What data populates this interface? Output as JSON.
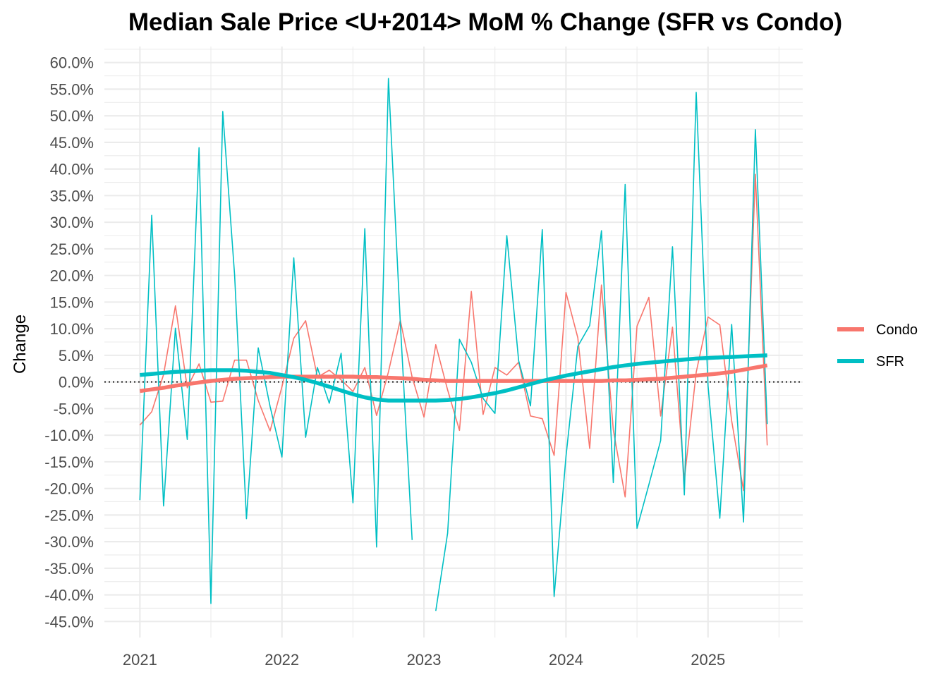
{
  "chart_data": {
    "type": "line",
    "title": "Median Sale Price <U+2014> MoM % Change (SFR vs Condo)",
    "xlabel": "",
    "ylabel": "Change",
    "x_ticks": [
      "2021",
      "2022",
      "2023",
      "2024",
      "2025"
    ],
    "y_ticks": [
      "60.0%",
      "55.0%",
      "50.0%",
      "45.0%",
      "40.0%",
      "35.0%",
      "30.0%",
      "25.0%",
      "20.0%",
      "15.0%",
      "10.0%",
      "5.0%",
      "0.0%",
      "-5.0%",
      "-10.0%",
      "-15.0%",
      "-20.0%",
      "-25.0%",
      "-30.0%",
      "-35.0%",
      "-40.0%",
      "-45.0%"
    ],
    "ylim": [
      -0.48,
      0.63
    ],
    "xlim": [
      "2020-10",
      "2025-09"
    ],
    "grid": true,
    "legend_position": "right",
    "reference_line": {
      "y": 0,
      "style": "dotted"
    },
    "x": [
      "2021-01",
      "2021-02",
      "2021-03",
      "2021-04",
      "2021-05",
      "2021-06",
      "2021-07",
      "2021-08",
      "2021-09",
      "2021-10",
      "2021-11",
      "2021-12",
      "2022-01",
      "2022-02",
      "2022-03",
      "2022-04",
      "2022-05",
      "2022-06",
      "2022-07",
      "2022-08",
      "2022-09",
      "2022-10",
      "2022-11",
      "2022-12",
      "2023-01",
      "2023-02",
      "2023-03",
      "2023-04",
      "2023-05",
      "2023-06",
      "2023-07",
      "2023-08",
      "2023-09",
      "2023-10",
      "2023-11",
      "2023-12",
      "2024-01",
      "2024-02",
      "2024-03",
      "2024-04",
      "2024-05",
      "2024-06",
      "2024-07",
      "2024-08",
      "2024-09",
      "2024-10",
      "2024-11",
      "2024-12",
      "2025-01",
      "2025-02",
      "2025-03",
      "2025-04",
      "2025-05",
      "2025-06"
    ],
    "series": [
      {
        "name": "Condo",
        "color": "#f8766d",
        "values": [
          -0.081,
          -0.056,
          0.014,
          0.143,
          -0.011,
          0.034,
          -0.038,
          -0.036,
          0.041,
          0.041,
          -0.035,
          -0.092,
          -0.009,
          0.082,
          0.115,
          0.009,
          0.022,
          0.004,
          -0.018,
          0.027,
          -0.063,
          0.019,
          0.116,
          0.009,
          -0.066,
          0.07,
          -0.015,
          -0.091,
          0.17,
          -0.061,
          0.027,
          0.013,
          0.037,
          -0.064,
          -0.069,
          -0.138,
          0.168,
          0.083,
          -0.125,
          0.182,
          -0.09,
          -0.216,
          0.105,
          0.159,
          -0.064,
          0.103,
          -0.184,
          0.018,
          0.122,
          0.107,
          -0.073,
          -0.204,
          0.39,
          -0.119
        ],
        "trend": [
          -0.017,
          -0.014,
          -0.011,
          -0.007,
          -0.004,
          -0.001,
          0.002,
          0.004,
          0.006,
          0.007,
          0.008,
          0.009,
          0.01,
          0.01,
          0.01,
          0.01,
          0.01,
          0.01,
          0.01,
          0.009,
          0.009,
          0.008,
          0.007,
          0.006,
          0.004,
          0.003,
          0.002,
          0.002,
          0.002,
          0.002,
          0.002,
          0.002,
          0.002,
          0.002,
          0.002,
          0.002,
          0.002,
          0.002,
          0.002,
          0.002,
          0.003,
          0.003,
          0.004,
          0.005,
          0.006,
          0.008,
          0.01,
          0.012,
          0.014,
          0.016,
          0.019,
          0.023,
          0.027,
          0.031
        ]
      },
      {
        "name": "SFR",
        "color": "#00bfc4",
        "values": [
          -0.222,
          0.313,
          -0.233,
          0.101,
          -0.108,
          0.44,
          -0.416,
          0.508,
          0.201,
          -0.257,
          0.064,
          -0.046,
          -0.141,
          0.233,
          -0.104,
          0.027,
          -0.04,
          0.054,
          -0.227,
          0.288,
          -0.31,
          0.57,
          0.112,
          -0.297,
          null,
          -0.43,
          -0.284,
          0.08,
          0.037,
          -0.031,
          -0.059,
          0.275,
          0.04,
          -0.045,
          0.286,
          -0.403,
          -0.14,
          0.067,
          0.106,
          0.284,
          -0.189,
          0.371,
          -0.275,
          -0.193,
          -0.11,
          0.254,
          -0.212,
          0.544,
          -0.007,
          -0.256,
          0.108,
          -0.263,
          0.474,
          -0.079
        ],
        "trend": [
          0.013,
          0.015,
          0.017,
          0.019,
          0.02,
          0.021,
          0.022,
          0.022,
          0.022,
          0.021,
          0.019,
          0.017,
          0.013,
          0.009,
          0.004,
          -0.002,
          -0.009,
          -0.016,
          -0.023,
          -0.029,
          -0.033,
          -0.035,
          -0.035,
          -0.035,
          -0.035,
          -0.035,
          -0.034,
          -0.032,
          -0.029,
          -0.025,
          -0.021,
          -0.016,
          -0.01,
          -0.004,
          0.002,
          0.007,
          0.012,
          0.016,
          0.02,
          0.024,
          0.028,
          0.031,
          0.034,
          0.036,
          0.038,
          0.04,
          0.042,
          0.044,
          0.045,
          0.046,
          0.047,
          0.048,
          0.049,
          0.05
        ]
      }
    ]
  }
}
